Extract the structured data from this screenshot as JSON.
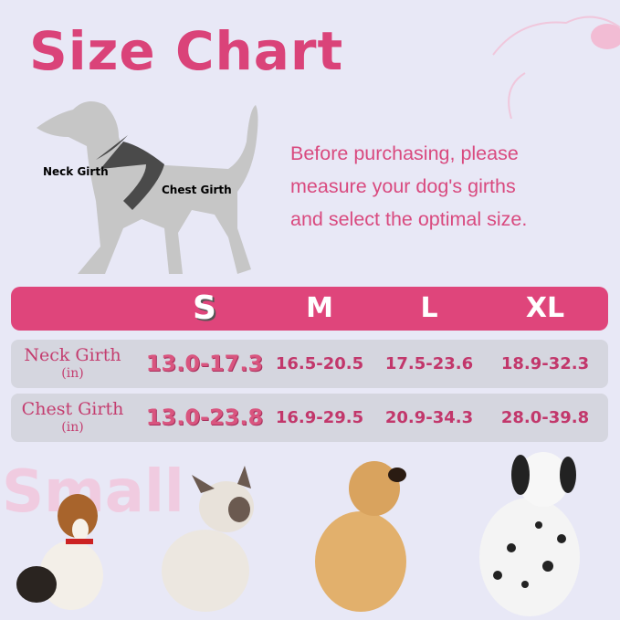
{
  "title": "Size Chart",
  "intro_lines": [
    "Before purchasing, please",
    "measure your dog's girths",
    "and select the optimal size."
  ],
  "diagram": {
    "neck_label": "Neck Girth",
    "chest_label": "Chest Girth"
  },
  "table": {
    "sizes": [
      "S",
      "M",
      "L",
      "XL"
    ],
    "rows": [
      {
        "label": "Neck Girth",
        "unit": "(in)",
        "values": [
          "13.0-17.3",
          "16.5-20.5",
          "17.5-23.6",
          "18.9-32.3"
        ]
      },
      {
        "label": "Chest Girth",
        "unit": "(in)",
        "values": [
          "13.0-23.8",
          "16.9-29.5",
          "20.9-34.3",
          "28.0-39.8"
        ]
      }
    ]
  },
  "watermark": "Small",
  "colors": {
    "accent": "#df457b",
    "row_bg": "#d5d6df",
    "background": "#e8e8f6"
  }
}
